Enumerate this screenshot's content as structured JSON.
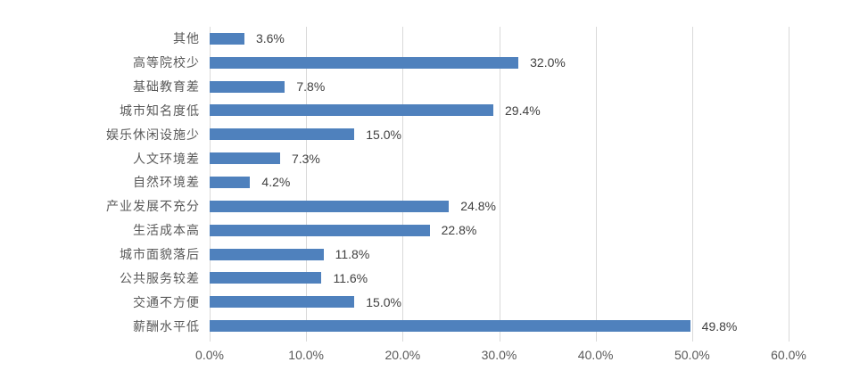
{
  "chart_data": {
    "type": "bar",
    "orientation": "horizontal",
    "title": "",
    "xlabel": "",
    "ylabel": "",
    "xlim": [
      0,
      60
    ],
    "grid": "vertical-on",
    "legend": "none",
    "bar_color": "#4f81bd",
    "gridline_color": "#d9d9d9",
    "category_label_color": "#595959",
    "value_label_color": "#404040",
    "axis_label_color": "#595959",
    "items": [
      {
        "label": "其他",
        "value": 3.6,
        "value_label": "3.6%"
      },
      {
        "label": "高等院校少",
        "value": 32.0,
        "value_label": "32.0%"
      },
      {
        "label": "基础教育差",
        "value": 7.8,
        "value_label": "7.8%"
      },
      {
        "label": "城市知名度低",
        "value": 29.4,
        "value_label": "29.4%"
      },
      {
        "label": "娱乐休闲设施少",
        "value": 15.0,
        "value_label": "15.0%"
      },
      {
        "label": "人文环境差",
        "value": 7.3,
        "value_label": "7.3%"
      },
      {
        "label": "自然环境差",
        "value": 4.2,
        "value_label": "4.2%"
      },
      {
        "label": "产业发展不充分",
        "value": 24.8,
        "value_label": "24.8%"
      },
      {
        "label": "生活成本高",
        "value": 22.8,
        "value_label": "22.8%"
      },
      {
        "label": "城市面貌落后",
        "value": 11.8,
        "value_label": "11.8%"
      },
      {
        "label": "公共服务较差",
        "value": 11.6,
        "value_label": "11.6%"
      },
      {
        "label": "交通不方便",
        "value": 15.0,
        "value_label": "15.0%"
      },
      {
        "label": "薪酬水平低",
        "value": 49.8,
        "value_label": "49.8%"
      }
    ],
    "x_tick_values": [
      0,
      10,
      20,
      30,
      40,
      50,
      60
    ],
    "x_ticks": [
      "0.0%",
      "10.0%",
      "20.0%",
      "30.0%",
      "40.0%",
      "50.0%",
      "60.0%"
    ]
  }
}
